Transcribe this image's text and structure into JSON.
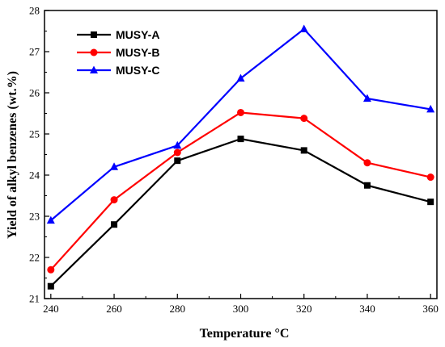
{
  "chart_data": {
    "type": "line",
    "xlabel": "Temperature °C",
    "ylabel": "Yield of alkyl benzenes (wt.%)",
    "x": [
      240,
      260,
      280,
      300,
      320,
      340,
      360
    ],
    "xlim": [
      238,
      362
    ],
    "xticks": [
      240,
      260,
      280,
      300,
      320,
      340,
      360
    ],
    "ylim": [
      21,
      28
    ],
    "yticks": [
      21,
      22,
      23,
      24,
      25,
      26,
      27,
      28
    ],
    "grid": false,
    "legend_position": "top-left",
    "series": [
      {
        "name": "MUSY-A",
        "color": "#000000",
        "marker": "square",
        "values": [
          21.3,
          22.8,
          24.35,
          24.88,
          24.6,
          23.75,
          23.35
        ]
      },
      {
        "name": "MUSY-B",
        "color": "#ff0000",
        "marker": "circle",
        "values": [
          21.7,
          23.4,
          24.55,
          25.52,
          25.38,
          24.3,
          23.95
        ]
      },
      {
        "name": "MUSY-C",
        "color": "#0000ff",
        "marker": "triangle",
        "values": [
          22.9,
          24.2,
          24.72,
          26.35,
          27.55,
          25.86,
          25.6
        ]
      }
    ]
  }
}
